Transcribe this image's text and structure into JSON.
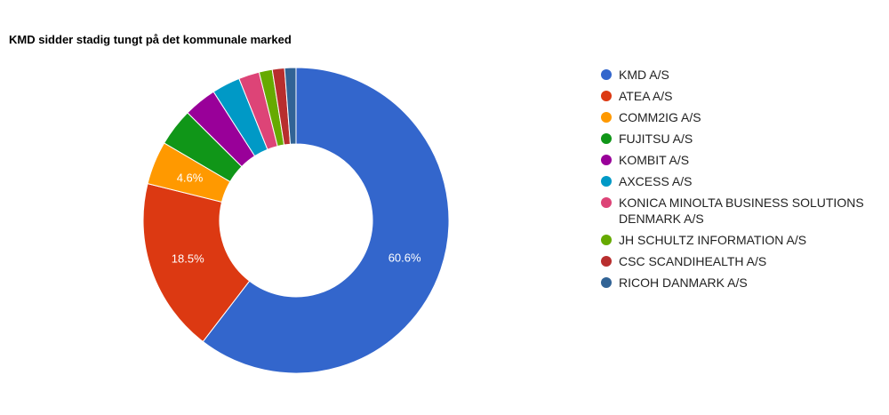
{
  "chart_data": {
    "type": "pie",
    "style": "donut",
    "title": "KMD sidder stadig tungt på det kommunale marked",
    "legend_position": "right",
    "categories": [
      "KMD A/S",
      "ATEA A/S",
      "COMM2IG A/S",
      "FUJITSU A/S",
      "KOMBIT A/S",
      "AXCESS A/S",
      "KONICA MINOLTA BUSINESS SOLUTIONS DENMARK A/S",
      "JH SCHULTZ INFORMATION A/S",
      "CSC SCANDIHEALTH A/S",
      "RICOH DANMARK A/S"
    ],
    "values": [
      60.6,
      18.5,
      4.6,
      4.0,
      3.5,
      3.0,
      2.2,
      1.4,
      1.3,
      1.2
    ],
    "data_labels": [
      "60.6%",
      "18.5%",
      "4.6%",
      "",
      "",
      "",
      "",
      "",
      "",
      ""
    ],
    "colors": [
      "#3366cc",
      "#dc3912",
      "#ff9900",
      "#109618",
      "#990099",
      "#0099c6",
      "#dd4477",
      "#66aa00",
      "#b82e2e",
      "#316395"
    ]
  }
}
